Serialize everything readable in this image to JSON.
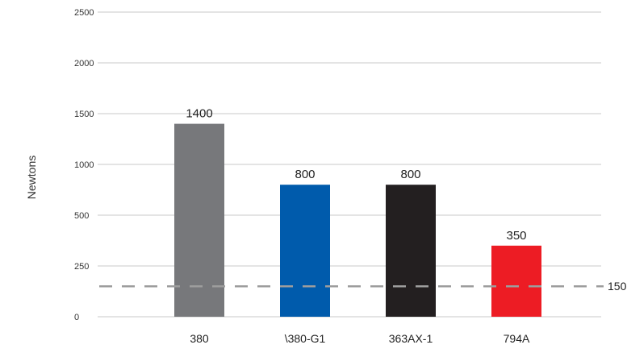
{
  "chart_data": {
    "type": "bar",
    "title": "",
    "xlabel": "",
    "ylabel": "Newtons",
    "categories": [
      "380",
      "\\380-G1",
      "363AX-1",
      "794A"
    ],
    "values": [
      1400,
      800,
      800,
      350
    ],
    "data_labels": [
      "1400",
      "800",
      "800",
      "350"
    ],
    "colors": [
      "#77787b",
      "#005bac",
      "#231f20",
      "#ed1c24"
    ],
    "y_ticks": [
      0,
      250,
      500,
      1000,
      1500,
      2000,
      2500
    ],
    "y_tick_labels": [
      "0",
      "250",
      "500",
      "1000",
      "1500",
      "2000",
      "2500"
    ],
    "y_scale": "categorical-ticks (evenly spaced labels)",
    "grid": true,
    "reference_line": {
      "value": 150,
      "label": "150",
      "style": "dashed",
      "color": "#9d9d9d"
    },
    "legend": "none"
  }
}
